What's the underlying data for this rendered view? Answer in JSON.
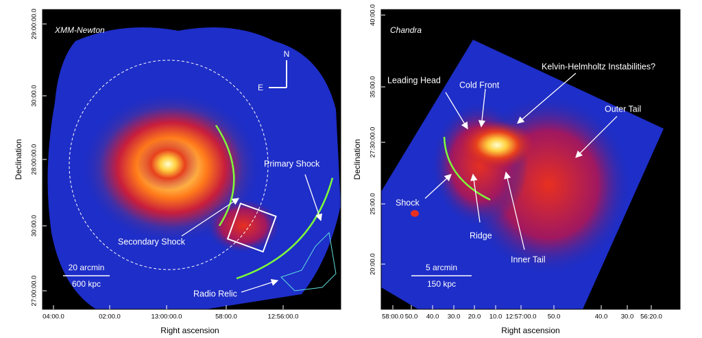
{
  "panels": [
    {
      "title": "XMM-Newton",
      "compass": {
        "north": "N",
        "east": "E"
      },
      "annotations": [
        "Primary Shock",
        "Secondary Shock",
        "Radio Relic"
      ],
      "scale_bar": {
        "angular": "20 arcmin",
        "physical": "600 kpc"
      },
      "y_axis": {
        "label": "Declination",
        "ticks": [
          "29:00:00.0",
          "30:00.0",
          "28:00:00.0",
          "30:00.0",
          "27:00:00.0"
        ]
      },
      "x_axis": {
        "label": "Right ascension",
        "ticks": [
          "04:00.0",
          "02:00.0",
          "13:00:00.0",
          "58:00.0",
          "12:56:00.0"
        ]
      }
    },
    {
      "title": "Chandra",
      "annotations": [
        "Cold Front",
        "Leading Head",
        "Kelvin-Helmholtz Instabilities?",
        "Outer Tail",
        "Shock",
        "Ridge",
        "Inner Tail"
      ],
      "scale_bar": {
        "angular": "5 arcmin",
        "physical": "150 kpc"
      },
      "y_axis": {
        "label": "Declination",
        "ticks": [
          "40:00.0",
          "35:00.0",
          "27:30:00.0",
          "25:00.0",
          "20:00.0"
        ]
      },
      "x_axis": {
        "label": "Right ascension",
        "ticks": [
          "58:00.0",
          "50.0",
          "40.0",
          "30.0",
          "20.0",
          "10.0",
          "12:57:00.0",
          "50.0",
          "40.0",
          "30.0",
          "56:20.0"
        ]
      }
    }
  ]
}
